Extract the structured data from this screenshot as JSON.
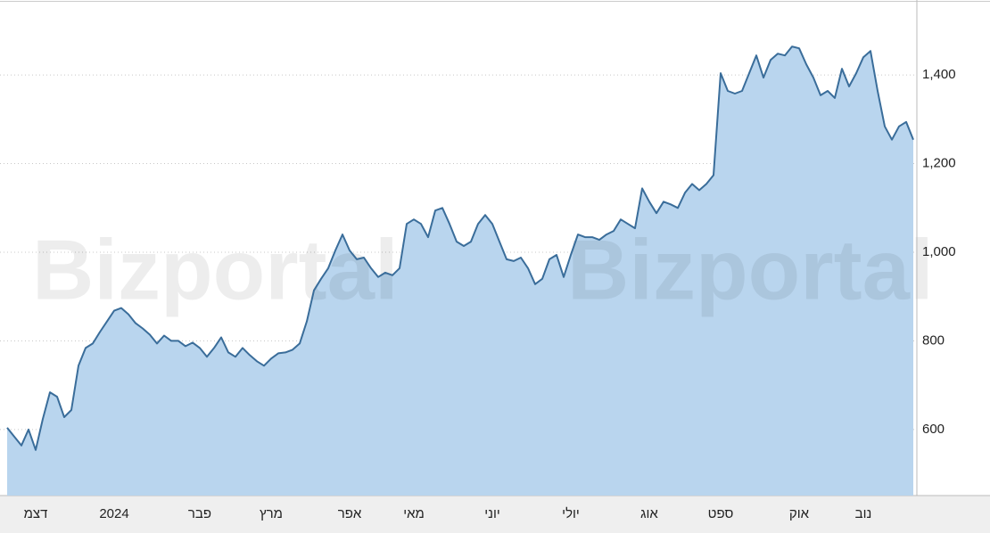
{
  "chart_data": {
    "type": "area",
    "watermark": "Bizportal",
    "color": "#3a6d9a",
    "fill": "#b9d5ee",
    "categories": [
      null,
      null,
      null,
      null,
      "דצמ",
      null,
      null,
      null,
      null,
      null,
      null,
      null,
      null,
      null,
      null,
      "2024",
      null,
      null,
      null,
      null,
      null,
      null,
      null,
      null,
      null,
      null,
      null,
      "פבר",
      null,
      null,
      null,
      null,
      null,
      null,
      null,
      null,
      null,
      "מרץ",
      null,
      null,
      null,
      null,
      null,
      null,
      null,
      null,
      null,
      null,
      "אפר",
      null,
      null,
      null,
      null,
      null,
      null,
      null,
      null,
      "מאי",
      null,
      null,
      null,
      null,
      null,
      null,
      null,
      null,
      null,
      null,
      "יוני",
      null,
      null,
      null,
      null,
      null,
      null,
      null,
      null,
      null,
      null,
      "יולי",
      null,
      null,
      null,
      null,
      null,
      null,
      null,
      null,
      null,
      null,
      "אוג",
      null,
      null,
      null,
      null,
      null,
      null,
      null,
      null,
      null,
      "ספט",
      null,
      null,
      null,
      null,
      null,
      null,
      null,
      null,
      null,
      null,
      "אוק",
      null,
      null,
      null,
      null,
      null,
      null,
      null,
      null,
      "נוב",
      null,
      null,
      null,
      null,
      null,
      null,
      null
    ],
    "values": [
      604,
      584,
      564,
      600,
      554,
      624,
      684,
      674,
      628,
      644,
      744,
      784,
      794,
      820,
      844,
      868,
      874,
      860,
      840,
      828,
      814,
      794,
      812,
      800,
      800,
      788,
      796,
      784,
      764,
      784,
      808,
      774,
      764,
      784,
      768,
      754,
      744,
      760,
      772,
      774,
      780,
      794,
      844,
      914,
      940,
      964,
      1004,
      1040,
      1004,
      984,
      988,
      964,
      944,
      954,
      948,
      964,
      1064,
      1074,
      1064,
      1034,
      1094,
      1100,
      1064,
      1024,
      1014,
      1024,
      1064,
      1084,
      1064,
      1024,
      984,
      980,
      988,
      964,
      928,
      940,
      984,
      994,
      944,
      994,
      1040,
      1034,
      1034,
      1028,
      1040,
      1048,
      1074,
      1064,
      1054,
      1144,
      1114,
      1088,
      1114,
      1108,
      1100,
      1134,
      1154,
      1140,
      1154,
      1174,
      1404,
      1364,
      1358,
      1364,
      1404,
      1444,
      1394,
      1434,
      1448,
      1444,
      1464,
      1460,
      1424,
      1394,
      1354,
      1364,
      1348,
      1414,
      1374,
      1404,
      1440,
      1454,
      1364,
      1284,
      1254,
      1284,
      1294,
      1254
    ],
    "ylim": [
      451,
      1559
    ],
    "yticks": [
      600,
      800,
      {
        "value": 1000,
        "label": "1,000"
      },
      {
        "value": 1200,
        "label": "1,200"
      },
      {
        "value": 1400,
        "label": "1,400"
      }
    ],
    "grid": true
  }
}
